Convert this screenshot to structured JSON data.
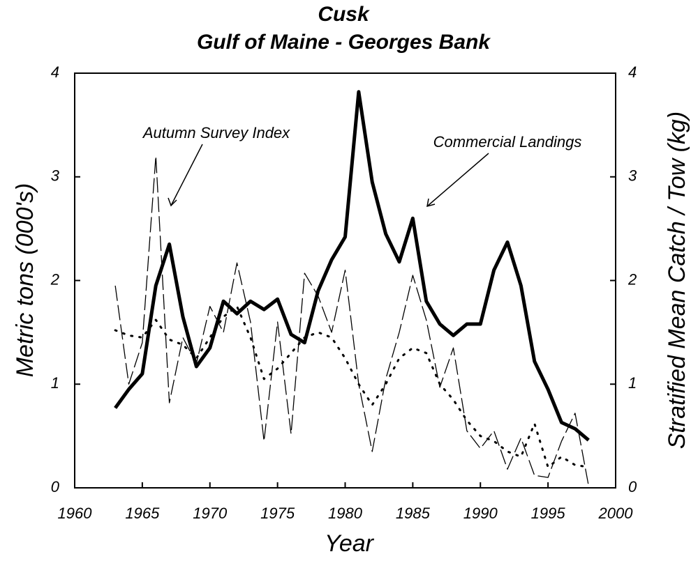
{
  "chart_data": {
    "type": "line",
    "title": "Cusk",
    "subtitle": "Gulf of Maine - Georges Bank",
    "x_label": "Year",
    "y_label": "Metric tons (000's)",
    "y2_label": "Stratified Mean Catch / Tow (kg)",
    "annotations": [
      "Autumn Survey Index",
      "Commercial Landings"
    ],
    "x": [
      1963,
      1964,
      1965,
      1966,
      1967,
      1968,
      1969,
      1970,
      1971,
      1972,
      1973,
      1974,
      1975,
      1976,
      1977,
      1978,
      1979,
      1980,
      1981,
      1982,
      1983,
      1984,
      1985,
      1986,
      1987,
      1988,
      1989,
      1990,
      1991,
      1992,
      1993,
      1994,
      1995,
      1996,
      1997,
      1998
    ],
    "xlim": [
      1960,
      2000
    ],
    "xticks": [
      1960,
      1965,
      1970,
      1975,
      1980,
      1985,
      1990,
      1995,
      2000
    ],
    "ylim": [
      0,
      4
    ],
    "yticks": [
      0,
      1,
      2,
      3,
      4
    ],
    "y2lim": [
      0,
      4
    ],
    "y2ticks": [
      0,
      1,
      2,
      3,
      4
    ],
    "series": [
      {
        "name": "Commercial Landings",
        "color": "#000000",
        "line_style": "solid",
        "line_width": 5,
        "values": [
          0.77,
          0.95,
          1.1,
          1.95,
          2.35,
          1.65,
          1.17,
          1.35,
          1.8,
          1.68,
          1.8,
          1.72,
          1.82,
          1.48,
          1.4,
          1.9,
          2.2,
          2.42,
          3.82,
          2.95,
          2.45,
          2.18,
          2.6,
          1.8,
          1.58,
          1.47,
          1.58,
          1.58,
          2.1,
          2.37,
          1.95,
          1.22,
          0.95,
          0.63,
          0.57,
          0.46
        ]
      },
      {
        "name": "Autumn Survey Index",
        "color": "#000000",
        "line_style": "dashed",
        "line_width": 1.3,
        "axis": "y2",
        "values": [
          1.95,
          1.0,
          1.4,
          3.2,
          0.82,
          1.45,
          1.2,
          1.75,
          1.5,
          2.17,
          1.6,
          0.45,
          1.6,
          0.52,
          2.07,
          1.85,
          1.5,
          2.1,
          1.0,
          0.35,
          1.05,
          1.5,
          2.05,
          1.62,
          0.97,
          1.35,
          0.55,
          0.38,
          0.55,
          0.18,
          0.48,
          0.12,
          0.1,
          0.45,
          0.72,
          0.02
        ]
      },
      {
        "color": "#000000",
        "line_style": "dotted",
        "line_width": 3,
        "axis": "y2",
        "values": [
          1.52,
          1.47,
          1.45,
          1.62,
          1.43,
          1.38,
          1.25,
          1.45,
          1.65,
          1.75,
          1.45,
          1.05,
          1.15,
          1.3,
          1.45,
          1.5,
          1.45,
          1.25,
          1.0,
          0.8,
          1.0,
          1.25,
          1.35,
          1.3,
          1.0,
          0.85,
          0.65,
          0.5,
          0.45,
          0.35,
          0.3,
          0.62,
          0.2,
          0.3,
          0.22,
          0.2
        ]
      }
    ]
  }
}
